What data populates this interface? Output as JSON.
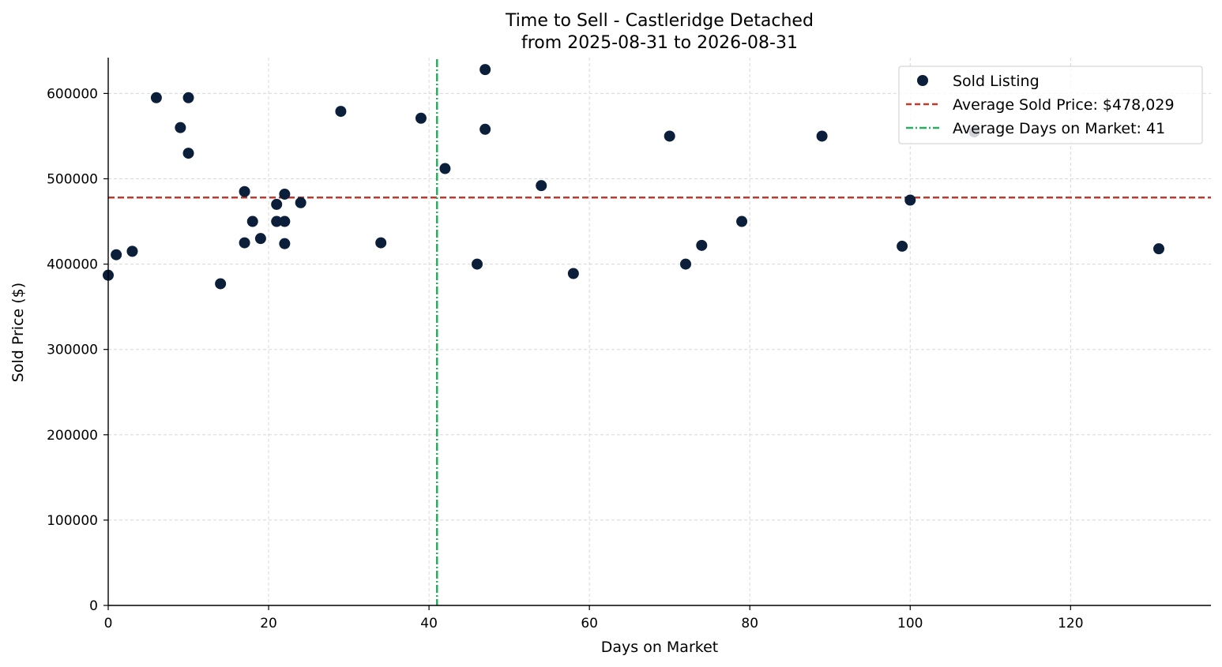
{
  "chart_data": {
    "type": "scatter",
    "title": "Time to Sell - Castleridge Detached",
    "subtitle": "from 2025-08-31 to 2026-08-31",
    "xlabel": "Days on Market",
    "ylabel": "Sold Price ($)",
    "xlim": [
      0,
      137.5
    ],
    "ylim": [
      0,
      642000
    ],
    "xticks": [
      0,
      20,
      40,
      60,
      80,
      100,
      120
    ],
    "yticks": [
      0,
      100000,
      200000,
      300000,
      400000,
      500000,
      600000
    ],
    "grid": true,
    "legend_position": "top-right",
    "colors": {
      "points": "#0b1f3a",
      "avg_price": "#c0392b",
      "avg_days": "#27ae60"
    },
    "series": [
      {
        "name": "Sold Listing",
        "points": [
          {
            "x": 0,
            "y": 387000
          },
          {
            "x": 1,
            "y": 411000
          },
          {
            "x": 3,
            "y": 415000
          },
          {
            "x": 6,
            "y": 595000
          },
          {
            "x": 9,
            "y": 560000
          },
          {
            "x": 10,
            "y": 595000
          },
          {
            "x": 10,
            "y": 530000
          },
          {
            "x": 14,
            "y": 377000
          },
          {
            "x": 17,
            "y": 485000
          },
          {
            "x": 17,
            "y": 425000
          },
          {
            "x": 18,
            "y": 450000
          },
          {
            "x": 19,
            "y": 430000
          },
          {
            "x": 21,
            "y": 470000
          },
          {
            "x": 21,
            "y": 450000
          },
          {
            "x": 22,
            "y": 482000
          },
          {
            "x": 22,
            "y": 450000
          },
          {
            "x": 22,
            "y": 424000
          },
          {
            "x": 24,
            "y": 472000
          },
          {
            "x": 29,
            "y": 579000
          },
          {
            "x": 34,
            "y": 425000
          },
          {
            "x": 39,
            "y": 571000
          },
          {
            "x": 42,
            "y": 512000
          },
          {
            "x": 46,
            "y": 400000
          },
          {
            "x": 47,
            "y": 628000
          },
          {
            "x": 47,
            "y": 558000
          },
          {
            "x": 54,
            "y": 492000
          },
          {
            "x": 58,
            "y": 389000
          },
          {
            "x": 70,
            "y": 550000
          },
          {
            "x": 72,
            "y": 400000
          },
          {
            "x": 74,
            "y": 422000
          },
          {
            "x": 79,
            "y": 450000
          },
          {
            "x": 89,
            "y": 550000
          },
          {
            "x": 99,
            "y": 421000
          },
          {
            "x": 100,
            "y": 475000
          },
          {
            "x": 108,
            "y": 555000
          },
          {
            "x": 131,
            "y": 418000
          }
        ]
      }
    ],
    "reference_lines": [
      {
        "name": "Average Sold Price: $478,029",
        "orientation": "horizontal",
        "value": 478029,
        "style": "dashed"
      },
      {
        "name": "Average Days on Market: 41",
        "orientation": "vertical",
        "value": 41,
        "style": "dashdot"
      }
    ]
  }
}
